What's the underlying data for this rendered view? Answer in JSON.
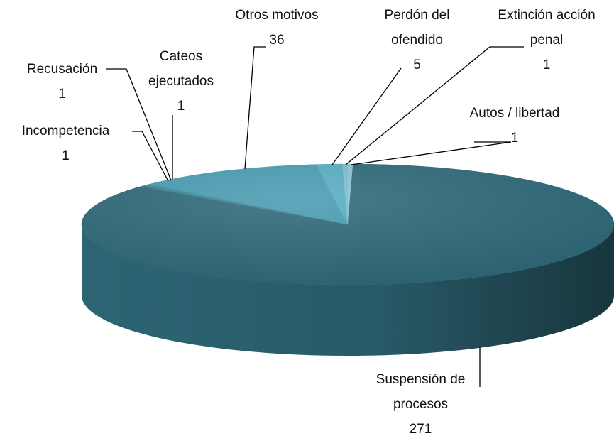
{
  "chart_data": {
    "type": "pie3d",
    "categories": [
      "Autos / libertad",
      "Suspensión de procesos",
      "Incompetencia",
      "Recusación",
      "Cateos ejecutados",
      "Otros motivos",
      "Perdón del ofendido",
      "Extinción acción penal"
    ],
    "values": [
      1,
      271,
      1,
      1,
      1,
      36,
      5,
      1
    ],
    "colors": [
      "#8cc6d6",
      "#2f6a7a",
      "#3a7f92",
      "#3f8a9e",
      "#4593a8",
      "#4a9db3",
      "#5aaec4",
      "#7cc0d2"
    ]
  }
}
